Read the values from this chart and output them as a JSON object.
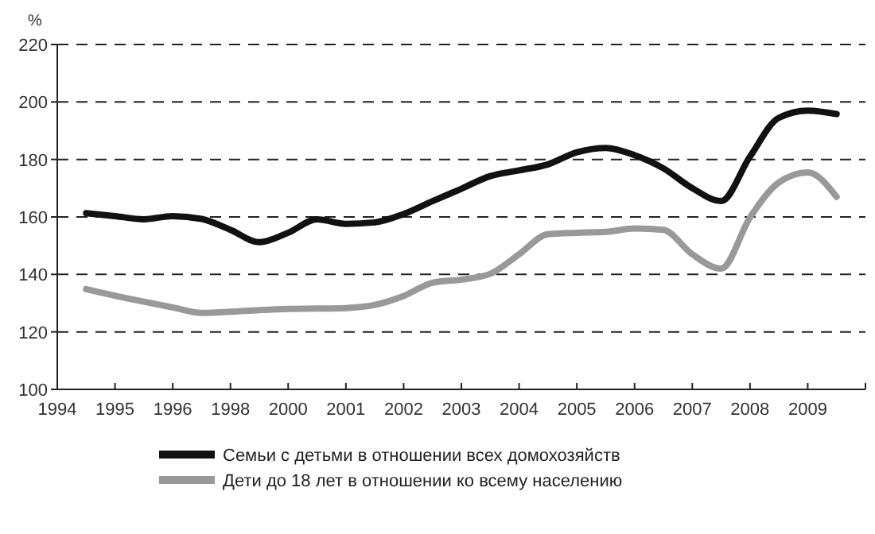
{
  "chart_data": {
    "type": "line",
    "ylabel": "%",
    "categories": [
      "1994",
      null,
      "1995",
      null,
      "1996",
      null,
      "1998",
      null,
      "2000",
      null,
      "2001",
      null,
      "2002",
      null,
      "2003",
      null,
      "2004",
      null,
      "2005",
      null,
      "2006",
      null,
      "2007",
      null,
      "2008",
      null,
      "2009",
      null,
      null
    ],
    "ylim": [
      100,
      220
    ],
    "yticks": [
      100,
      120,
      140,
      160,
      180,
      200,
      220
    ],
    "grid": "y",
    "legend": "bottom",
    "line_style": "solid",
    "series": [
      {
        "name": "Семьи с детьми в отношении всех домохозяйств",
        "color": "#111111",
        "values": [
          null,
          161.3,
          160.3,
          159.2,
          160.3,
          159.3,
          155.5,
          151.2,
          154.5,
          159.2,
          157.6,
          158.1,
          161,
          165.5,
          169.8,
          174.2,
          176.2,
          178.3,
          182.5,
          184,
          181.5,
          176.9,
          170,
          165.5,
          181,
          194.5,
          197,
          195.8,
          null
        ]
      },
      {
        "name": "Дети до 18 лет в отношении ко всему населению",
        "color": "#999999",
        "values": [
          null,
          134.9,
          132.6,
          130.5,
          128.5,
          126.6,
          127,
          127.6,
          128,
          128.1,
          128.3,
          129.4,
          132.5,
          137.1,
          138.2,
          140.2,
          147,
          154,
          154.5,
          154.8,
          156,
          155.5,
          147,
          142,
          159.8,
          172,
          175.5,
          167,
          null
        ]
      }
    ]
  }
}
